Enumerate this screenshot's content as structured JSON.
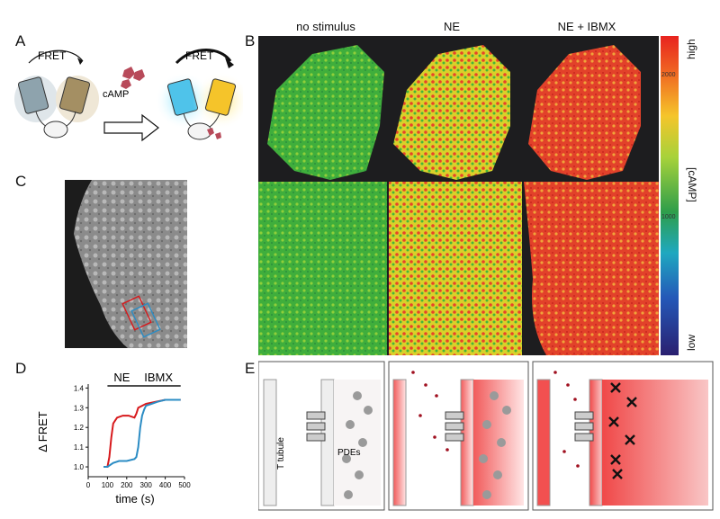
{
  "panels": {
    "a": "A",
    "b": "B",
    "c": "C",
    "d": "D",
    "e": "E"
  },
  "panel_a": {
    "fret_left": "FRET",
    "fret_right": "FRET",
    "camp": "cAMP"
  },
  "panel_b": {
    "columns": [
      "no stimulus",
      "NE",
      "NE + IBMX"
    ],
    "colorbar": {
      "high": "high",
      "low": "low",
      "label": "[cAMP]",
      "tick_upper": "2000",
      "tick_lower": "1000"
    }
  },
  "panel_e": {
    "t_tubule": "T tubule",
    "pdes": "PDEs"
  },
  "colors": {
    "red": "#d7191c",
    "blue": "#2b8cc4",
    "green": "#3aa83a"
  },
  "chart_data": {
    "type": "line",
    "xlabel": "time (s)",
    "ylabel": "Δ FRET",
    "xlim": [
      0,
      500
    ],
    "ylim": [
      0.95,
      1.42
    ],
    "xticks": [
      0,
      100,
      200,
      300,
      400,
      500
    ],
    "yticks": [
      1.0,
      1.1,
      1.2,
      1.3,
      1.4
    ],
    "annotations": [
      {
        "text": "NE",
        "x_start": 100,
        "x_end": 250
      },
      {
        "text": "IBMX",
        "x_start": 250,
        "x_end": 480
      }
    ],
    "series": [
      {
        "color": "#d7191c",
        "x": [
          80,
          100,
          110,
          120,
          130,
          150,
          180,
          210,
          240,
          250,
          260,
          280,
          300,
          350,
          400,
          450,
          480
        ],
        "y": [
          1.0,
          1.0,
          1.05,
          1.15,
          1.22,
          1.25,
          1.26,
          1.26,
          1.25,
          1.27,
          1.3,
          1.31,
          1.32,
          1.33,
          1.34,
          1.34,
          1.34
        ]
      },
      {
        "color": "#2b8cc4",
        "x": [
          80,
          100,
          130,
          160,
          200,
          240,
          250,
          260,
          270,
          280,
          290,
          300,
          330,
          360,
          400,
          450,
          480
        ],
        "y": [
          1.0,
          1.0,
          1.02,
          1.03,
          1.03,
          1.04,
          1.05,
          1.1,
          1.2,
          1.26,
          1.29,
          1.31,
          1.32,
          1.33,
          1.34,
          1.34,
          1.34
        ]
      }
    ]
  }
}
